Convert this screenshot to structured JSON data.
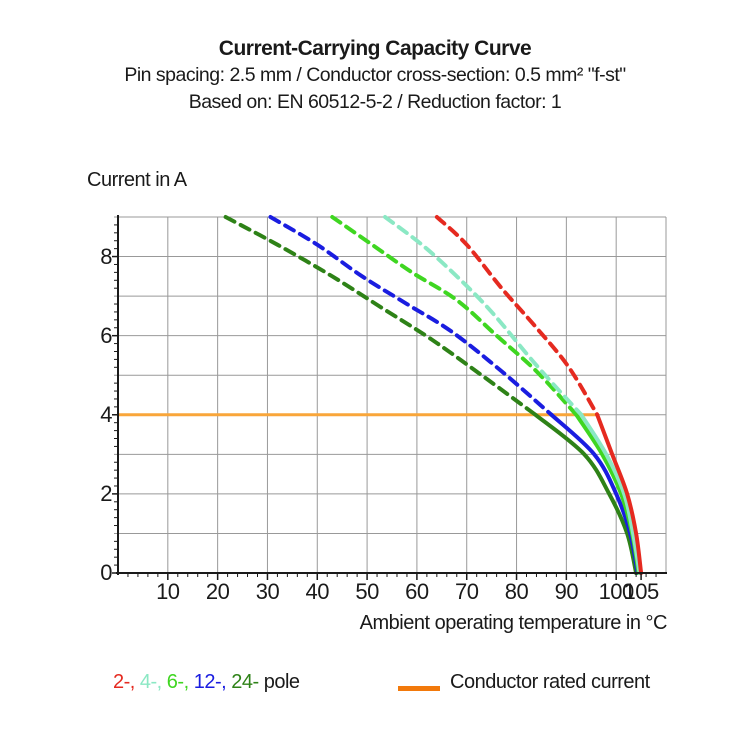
{
  "header": {
    "title": "Current-Carrying Capacity Curve",
    "subtitle1": "Pin spacing: 2.5 mm / Conductor cross-section: 0.5 mm² \"f-st\"",
    "subtitle2": "Based on: EN 60512-5-2 / Reduction factor: 1"
  },
  "chart_data": {
    "type": "line",
    "title": "Current-Carrying Capacity Curve",
    "xlabel": "Ambient operating temperature in °C",
    "ylabel": "Current in A",
    "xlim": [
      0,
      110
    ],
    "ylim": [
      0,
      9
    ],
    "x_ticks": [
      10,
      20,
      30,
      40,
      50,
      60,
      70,
      80,
      90,
      100,
      105
    ],
    "y_ticks": [
      0,
      2,
      4,
      6,
      8
    ],
    "x_gridline_step": 10,
    "y_gridline_step": 1,
    "grid": true,
    "grid_color": "#999999",
    "axis_color": "#1a1a1a",
    "rated_current": {
      "label": "Conductor rated current",
      "value_a": 4,
      "x_start": 0,
      "x_end": 96.2,
      "line_color": "#F9A63A",
      "swatch_color": "#F2790B"
    },
    "series": [
      {
        "name": "2-pole",
        "color": "#E52A20",
        "dashed_points": [
          [
            64,
            9
          ],
          [
            70,
            8.3
          ],
          [
            77,
            7.2
          ],
          [
            84,
            6.2
          ],
          [
            90.5,
            5.2
          ],
          [
            96.2,
            4
          ]
        ],
        "solid_points": [
          [
            96.2,
            4
          ],
          [
            99.2,
            3
          ],
          [
            102.2,
            2
          ],
          [
            104,
            1
          ],
          [
            105,
            0
          ]
        ]
      },
      {
        "name": "4-pole",
        "color": "#8BE8C4",
        "dashed_points": [
          [
            53.6,
            9
          ],
          [
            61,
            8.3
          ],
          [
            68,
            7.5
          ],
          [
            75,
            6.6
          ],
          [
            84,
            5.25
          ],
          [
            93,
            4
          ]
        ],
        "solid_points": [
          [
            93,
            4
          ],
          [
            98,
            3
          ],
          [
            101.6,
            2
          ],
          [
            103.4,
            1
          ],
          [
            104.7,
            0
          ]
        ]
      },
      {
        "name": "6-pole",
        "color": "#3FD621",
        "dashed_points": [
          [
            43,
            9
          ],
          [
            51,
            8.3
          ],
          [
            59,
            7.6
          ],
          [
            68,
            6.9
          ],
          [
            76,
            6.0
          ],
          [
            84,
            5.1
          ],
          [
            92,
            4
          ]
        ],
        "solid_points": [
          [
            92,
            4
          ],
          [
            97.2,
            3
          ],
          [
            101,
            2
          ],
          [
            103.2,
            1
          ],
          [
            104.5,
            0
          ]
        ]
      },
      {
        "name": "12-pole",
        "color": "#1A1DE0",
        "dashed_points": [
          [
            30.6,
            9
          ],
          [
            40,
            8.3
          ],
          [
            49,
            7.5
          ],
          [
            58,
            6.8
          ],
          [
            67,
            6.1
          ],
          [
            77,
            5.1
          ],
          [
            87,
            4
          ]
        ],
        "solid_points": [
          [
            87,
            4
          ],
          [
            95.6,
            3
          ],
          [
            100,
            2
          ],
          [
            102.8,
            1
          ],
          [
            104.3,
            0
          ]
        ]
      },
      {
        "name": "24-pole",
        "color": "#2E8217",
        "dashed_points": [
          [
            21.6,
            9
          ],
          [
            32,
            8.3
          ],
          [
            43,
            7.5
          ],
          [
            53,
            6.7
          ],
          [
            63,
            5.9
          ],
          [
            73,
            5.0
          ],
          [
            83.8,
            4
          ]
        ],
        "solid_points": [
          [
            83.8,
            4
          ],
          [
            93.6,
            3
          ],
          [
            98.6,
            2
          ],
          [
            102.2,
            1
          ],
          [
            104,
            0
          ]
        ]
      }
    ]
  },
  "legend": {
    "pole_segments": [
      {
        "text": "2-,",
        "color": "#E52A20"
      },
      {
        "text": "4-,",
        "color": "#8BE8C4"
      },
      {
        "text": "6-,",
        "color": "#3FD621"
      },
      {
        "text": "12-,",
        "color": "#1A1DE0"
      },
      {
        "text": "24-",
        "color": "#2E8217"
      },
      {
        "text": "pole",
        "color": "#1a1a1a"
      }
    ],
    "rated_label": "Conductor rated current"
  }
}
